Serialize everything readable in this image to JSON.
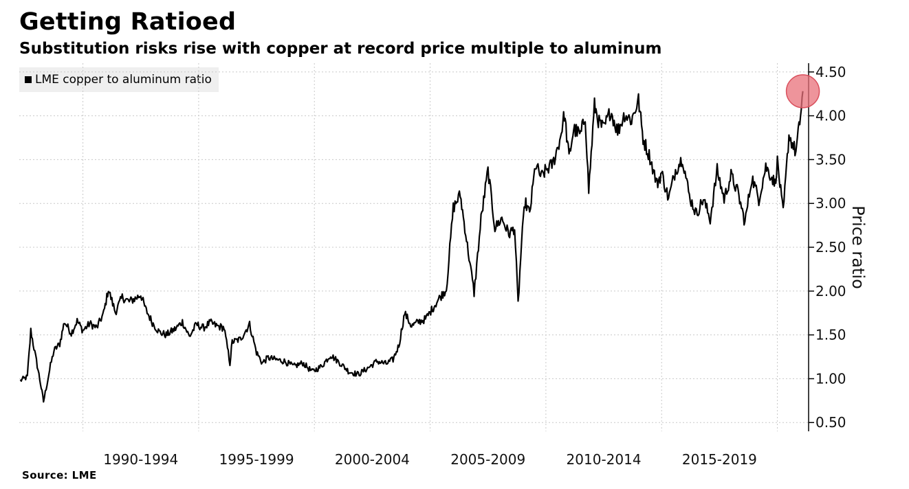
{
  "chart_data": {
    "type": "line",
    "title": "Getting Ratioed",
    "subtitle": "Substitution risks rise with copper at record price multiple to aluminum",
    "ylabel": "Price ratio",
    "xlabel": "",
    "source": "Source: LME",
    "ylim": [
      0.4,
      4.6
    ],
    "xlim": [
      1987.25,
      2021.35
    ],
    "grid": true,
    "legend_position": "top-left",
    "y_ticks": [
      "0.50",
      "1.00",
      "1.50",
      "2.00",
      "2.50",
      "3.00",
      "3.50",
      "4.00",
      "4.50"
    ],
    "x_tick_labels": [
      "1990-1994",
      "1995-1999",
      "2000-2004",
      "2005-2009",
      "2010-2014",
      "2015-2019"
    ],
    "highlight": {
      "x": 2021.1,
      "y": 4.28,
      "color": "#e8707a"
    },
    "series": [
      {
        "name": "LME copper to aluminum ratio",
        "color": "#000000",
        "x": [
          1987.3,
          1987.6,
          1987.75,
          1987.85,
          1988.1,
          1988.3,
          1988.6,
          1988.75,
          1989.0,
          1989.2,
          1989.5,
          1989.75,
          1990.0,
          1990.3,
          1990.6,
          1990.9,
          1991.1,
          1991.4,
          1991.7,
          1992.0,
          1992.3,
          1992.5,
          1992.7,
          1993.0,
          1993.3,
          1993.6,
          1994.0,
          1994.3,
          1994.6,
          1994.9,
          1995.2,
          1995.5,
          1995.8,
          1996.1,
          1996.35,
          1996.45,
          1996.8,
          1997.2,
          1997.5,
          1997.75,
          1998.0,
          1998.3,
          1998.7,
          1999.1,
          1999.5,
          1999.9,
          2000.3,
          2000.7,
          2001.1,
          2001.5,
          2001.9,
          2002.3,
          2002.7,
          2003.1,
          2003.4,
          2003.65,
          2003.9,
          2004.2,
          2004.5,
          2004.8,
          2005.1,
          2005.4,
          2005.7,
          2006.0,
          2006.3,
          2006.5,
          2006.9,
          2007.2,
          2007.5,
          2007.8,
          2008.1,
          2008.4,
          2008.65,
          2008.8,
          2008.95,
          2009.1,
          2009.3,
          2009.55,
          2009.8,
          2010.0,
          2010.3,
          2010.6,
          2010.8,
          2011.0,
          2011.2,
          2011.5,
          2011.7,
          2011.85,
          2012.1,
          2012.3,
          2012.5,
          2012.8,
          2013.1,
          2013.4,
          2013.7,
          2014.0,
          2014.2,
          2014.5,
          2014.8,
          2015.0,
          2015.3,
          2015.6,
          2015.9,
          2016.2,
          2016.5,
          2016.8,
          2017.1,
          2017.4,
          2017.7,
          2018.0,
          2018.3,
          2018.6,
          2018.9,
          2019.2,
          2019.5,
          2019.8,
          2019.9,
          2020.0,
          2020.25,
          2020.5,
          2020.8,
          2021.0,
          2021.1
        ],
        "values": [
          0.98,
          1.02,
          1.55,
          1.4,
          1.05,
          0.74,
          1.15,
          1.32,
          1.4,
          1.65,
          1.52,
          1.66,
          1.55,
          1.63,
          1.58,
          1.75,
          2.02,
          1.76,
          1.93,
          1.88,
          1.92,
          1.96,
          1.8,
          1.64,
          1.53,
          1.5,
          1.57,
          1.65,
          1.48,
          1.62,
          1.58,
          1.64,
          1.6,
          1.58,
          1.18,
          1.42,
          1.45,
          1.62,
          1.3,
          1.18,
          1.24,
          1.22,
          1.2,
          1.14,
          1.18,
          1.08,
          1.14,
          1.27,
          1.18,
          1.08,
          1.05,
          1.12,
          1.2,
          1.17,
          1.22,
          1.38,
          1.75,
          1.6,
          1.65,
          1.68,
          1.8,
          1.92,
          2.02,
          2.95,
          3.1,
          2.72,
          1.98,
          2.82,
          3.38,
          2.72,
          2.83,
          2.65,
          2.72,
          1.85,
          2.55,
          3.02,
          2.88,
          3.44,
          3.3,
          3.38,
          3.45,
          3.72,
          4.02,
          3.52,
          3.85,
          3.78,
          4.0,
          3.15,
          4.12,
          3.92,
          3.85,
          4.06,
          3.82,
          4.02,
          3.95,
          4.18,
          3.74,
          3.52,
          3.22,
          3.35,
          3.05,
          3.38,
          3.52,
          3.08,
          2.88,
          3.05,
          2.82,
          3.38,
          3.05,
          3.32,
          3.12,
          2.78,
          3.3,
          3.05,
          3.42,
          3.28,
          3.22,
          3.48,
          2.88,
          3.78,
          3.58,
          4.0,
          4.28
        ]
      }
    ]
  }
}
